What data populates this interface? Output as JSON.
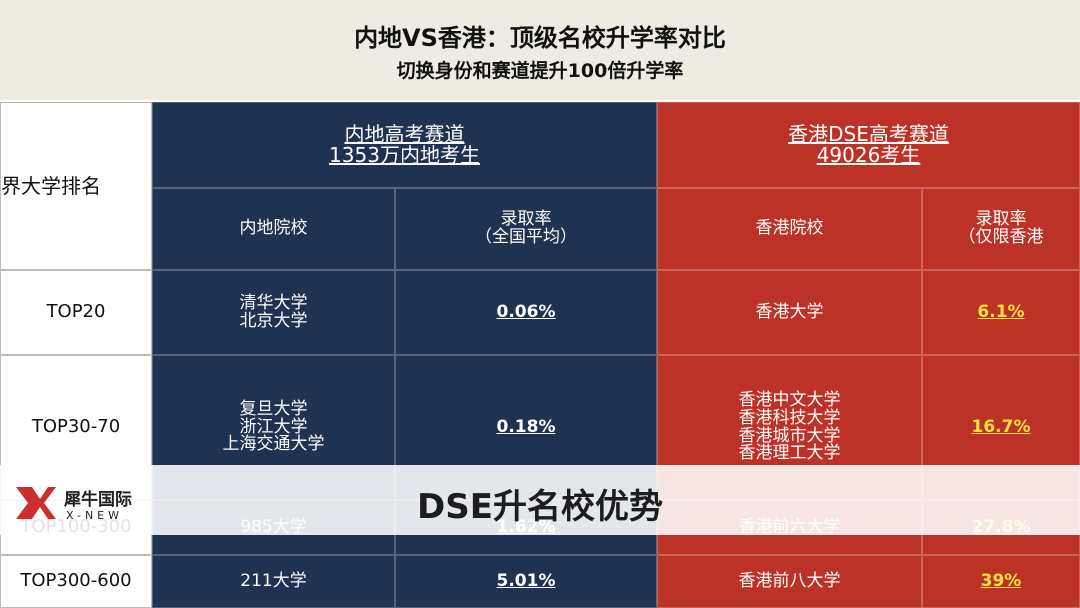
{
  "header": {
    "title": "内地VS香港：顶级名校升学率对比",
    "subtitle": "切换身份和赛道提升100倍升学率"
  },
  "table": {
    "rank_header": "界大学排名",
    "groups": [
      {
        "name": "内地高考赛道",
        "note": "1353万内地考生",
        "columns": [
          [
            "内地院校"
          ],
          [
            "录取率",
            "（全国平均）"
          ]
        ]
      },
      {
        "name": "香港DSE高考赛道",
        "note": "49026考生",
        "columns": [
          [
            "香港院校"
          ],
          [
            "录取率",
            "（仅限香港"
          ]
        ]
      }
    ],
    "rows": [
      {
        "rank": "TOP20",
        "mainland_schools": [
          "清华大学",
          "北京大学"
        ],
        "mainland_rate": "0.06%",
        "hk_schools": [
          "香港大学"
        ],
        "hk_rate": "6.1%"
      },
      {
        "rank": "TOP30-70",
        "mainland_schools": [
          "复旦大学",
          "浙江大学",
          "上海交通大学"
        ],
        "mainland_rate": "0.18%",
        "hk_schools": [
          "香港中文大学",
          "香港科技大学",
          "香港城市大学",
          "香港理工大学"
        ],
        "hk_rate": "16.7%"
      },
      {
        "rank": "TOP100-300",
        "mainland_schools": [
          "985大学"
        ],
        "mainland_rate": "1.62%",
        "hk_schools": [
          "香港前六大学"
        ],
        "hk_rate": "27.8%"
      },
      {
        "rank": "TOP300-600",
        "mainland_schools": [
          "211大学"
        ],
        "mainland_rate": "5.01%",
        "hk_schools": [
          "香港前八大学"
        ],
        "hk_rate": "39%"
      }
    ]
  },
  "banner": {
    "brand": "犀牛国际",
    "brand_en": "X-NEW",
    "text": "DSE升名校优势"
  }
}
